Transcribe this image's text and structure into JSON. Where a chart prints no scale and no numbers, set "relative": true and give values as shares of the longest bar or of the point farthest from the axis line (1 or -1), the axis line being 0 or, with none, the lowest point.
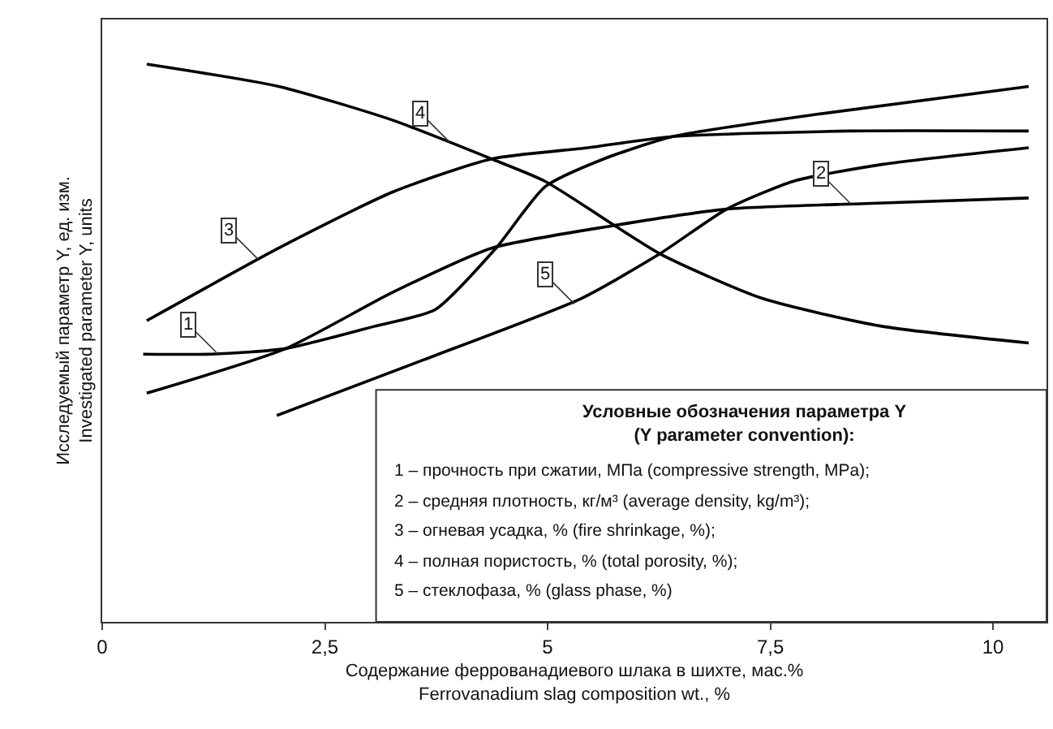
{
  "chart_data": {
    "type": "line",
    "relative": true,
    "xlabel": "Содержание феррованадиевого шлака в шихте, мас.%\nFerrovanadium slag composition wt., %",
    "ylabel": "Исследуемый параметр Y, ед. изм.\nInvestigated parameter Y, units",
    "xlim": [
      0,
      10.6
    ],
    "xticks": [
      0,
      {
        "value": 2.5,
        "label": "2,5"
      },
      5,
      {
        "value": 7.5,
        "label": "7,5"
      },
      10
    ],
    "marker": "none",
    "line_style": "solid",
    "series": [
      {
        "color": "#000000",
        "x": [
          0.46,
          1.23,
          2.06,
          3.06,
          3.74,
          4.42,
          4.97,
          5.63,
          6.4,
          8.02,
          10.4
        ],
        "values": [
          0.48,
          0.48,
          0.49,
          0.53,
          0.56,
          0.67,
          0.78,
          0.83,
          0.87,
          0.91,
          0.96
        ]
      },
      {
        "color": "#000000",
        "x": [
          0.5,
          2.06,
          3.25,
          4.37,
          5.72,
          7.01,
          8.57,
          10.4
        ],
        "values": [
          0.41,
          0.49,
          0.59,
          0.67,
          0.71,
          0.74,
          0.75,
          0.76
        ]
      },
      {
        "color": "#000000",
        "x": [
          0.5,
          1.98,
          3.25,
          4.37,
          5.45,
          6.4,
          8.39,
          10.4
        ],
        "values": [
          0.54,
          0.67,
          0.77,
          0.83,
          0.85,
          0.87,
          0.88,
          0.88
        ]
      },
      {
        "color": "#000000",
        "x": [
          0.5,
          1.98,
          3.25,
          4.37,
          4.97,
          6.26,
          7.41,
          8.75,
          10.4
        ],
        "values": [
          1.0,
          0.96,
          0.9,
          0.83,
          0.79,
          0.66,
          0.58,
          0.53,
          0.5
        ]
      },
      {
        "color": "#000000",
        "x": [
          1.96,
          3.61,
          5.38,
          6.26,
          7.01,
          7.76,
          8.75,
          10.4
        ],
        "values": [
          0.37,
          0.47,
          0.58,
          0.66,
          0.74,
          0.79,
          0.82,
          0.85
        ]
      }
    ],
    "annotations": [
      {
        "text": "1",
        "x": 1.3,
        "y": 0.48
      },
      {
        "text": "2",
        "x": 8.4,
        "y": 0.75
      },
      {
        "text": "3",
        "x": 1.75,
        "y": 0.65
      },
      {
        "text": "4",
        "x": 3.9,
        "y": 0.86
      },
      {
        "text": "5",
        "x": 5.3,
        "y": 0.57
      },
      "Условные обозначения параметра Y\n(Y parameter convention):",
      "1 – прочность при сжатии, МПа (compressive strength, MPa);",
      "2 – средняя плотность, кг/м³ (average density, kg/m³);",
      "3 – огневая усадка, % (fire shrinkage, %);",
      "4 – полная пористость, % (total porosity, %);",
      "5 – стеклофаза, % (glass phase, %)"
    ]
  }
}
